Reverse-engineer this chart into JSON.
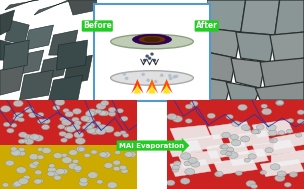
{
  "bg_color": "#ffffff",
  "panel_tl": {
    "facecolor": "#6a7a7a"
  },
  "panel_tr": {
    "facecolor": "#8a9898"
  },
  "panel_center": {
    "facecolor": "#ffffff",
    "border": "#5599cc"
  },
  "panel_bl_top": "#cc2222",
  "panel_bl_bot": "#ccaa00",
  "panel_br": "#cc2222",
  "crack_color": "#2233aa",
  "circle_face": "#c0c8c8",
  "circle_edge": "#888888",
  "white_crystal": "#f0f0f0",
  "arrow_color": "#22cc22",
  "arrow_text_color": "#ffffff",
  "before_text": "Before",
  "after_text": "After",
  "mai_text": "MAI Evaporation",
  "layout": {
    "fig_width": 3.04,
    "fig_height": 1.89,
    "dpi": 100
  }
}
